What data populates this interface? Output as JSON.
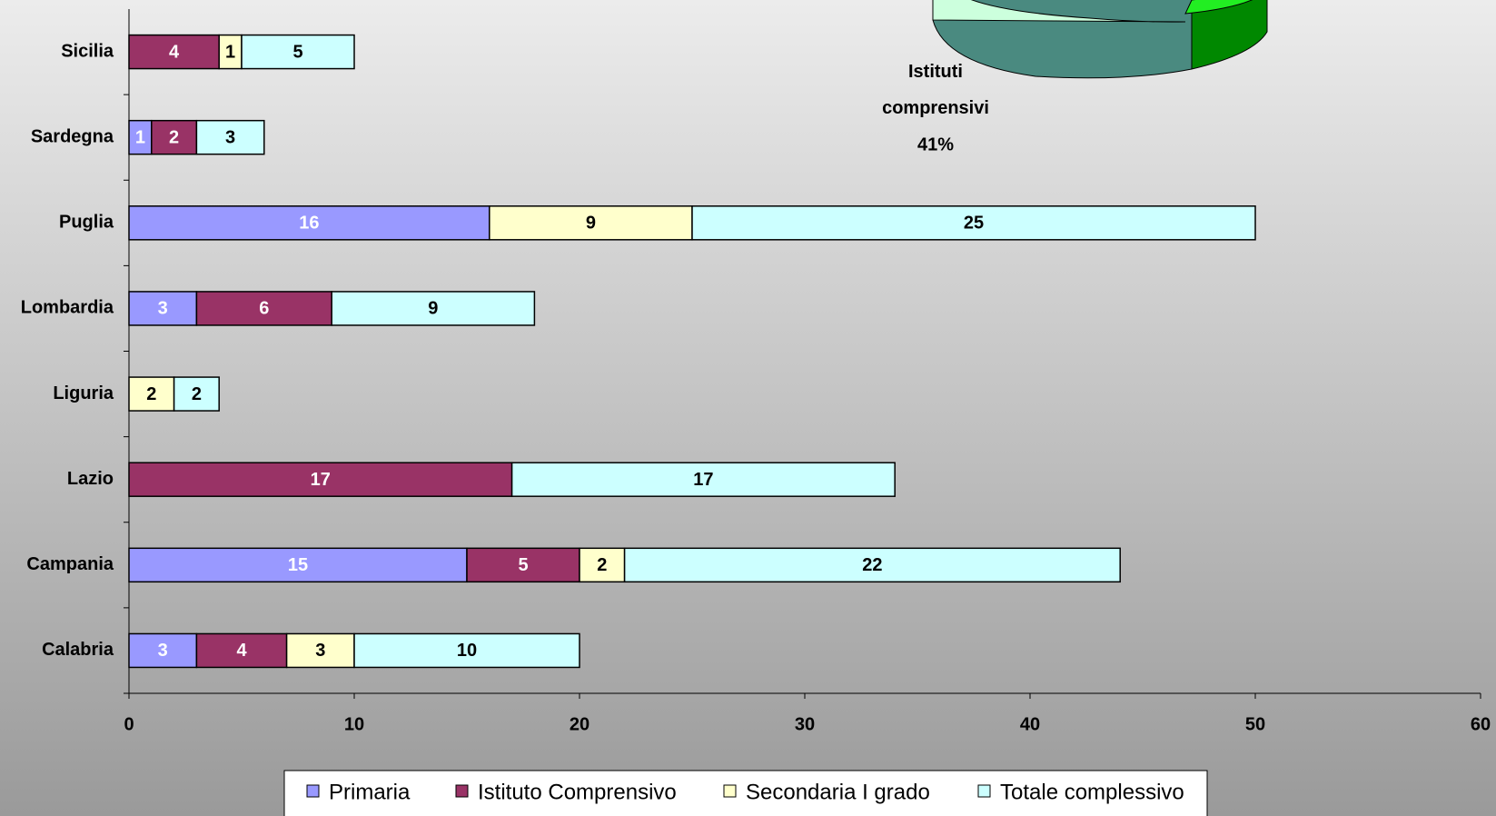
{
  "chart_data": [
    {
      "type": "bar",
      "orientation": "horizontal",
      "stacked": true,
      "categories": [
        "Calabria",
        "Campania",
        "Lazio",
        "Liguria",
        "Lombardia",
        "Puglia",
        "Sardegna",
        "Sicilia"
      ],
      "series": [
        {
          "name": "Primaria",
          "color": "#9999ff",
          "label_color": "#ffffff",
          "values": [
            3,
            15,
            null,
            null,
            3,
            16,
            1,
            null
          ]
        },
        {
          "name": "Istituto Comprensivo",
          "color": "#993366",
          "label_color": "#ffffff",
          "values": [
            4,
            5,
            17,
            null,
            6,
            null,
            2,
            4
          ]
        },
        {
          "name": "Secondaria I grado",
          "color": "#ffffcc",
          "label_color": "#000000",
          "values": [
            3,
            2,
            null,
            2,
            null,
            9,
            null,
            1
          ]
        },
        {
          "name": "Totale complessivo",
          "color": "#ccffff",
          "label_color": "#000000",
          "values": [
            10,
            22,
            17,
            2,
            9,
            25,
            3,
            5
          ]
        }
      ],
      "xlim": [
        0,
        60
      ],
      "xticks": [
        0,
        10,
        20,
        30,
        40,
        50,
        60
      ],
      "legend": "bottom"
    },
    {
      "type": "pie",
      "labels": [
        "Istituti comprensivi"
      ],
      "values": [
        41
      ],
      "value_labels": [
        "41%"
      ],
      "colors": [
        "#4a8a80"
      ]
    }
  ]
}
